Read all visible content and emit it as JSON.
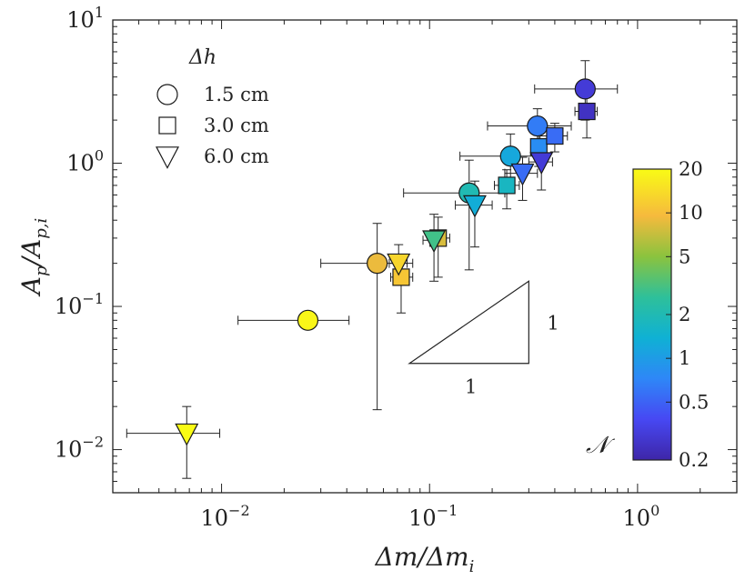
{
  "chart_data": {
    "type": "scatter",
    "xscale": "log",
    "yscale": "log",
    "xlim": [
      0.003,
      3
    ],
    "ylim": [
      0.005,
      10
    ],
    "x_ticks": [
      {
        "value": 0.01,
        "base": "10",
        "exp": "−2"
      },
      {
        "value": 0.1,
        "base": "10",
        "exp": "−1"
      },
      {
        "value": 1,
        "base": "10",
        "exp": "0"
      }
    ],
    "y_ticks": [
      {
        "value": 0.01,
        "base": "10",
        "exp": "−2"
      },
      {
        "value": 0.1,
        "base": "10",
        "exp": "−1"
      },
      {
        "value": 1,
        "base": "10",
        "exp": "0"
      },
      {
        "value": 10,
        "base": "10",
        "exp": "1"
      }
    ],
    "xlabel": "Δm/Δm",
    "xlabel_sub": "i",
    "ylabel": "A",
    "ylabel_sub": "p",
    "ylabel_denom": "/A",
    "ylabel_denom_sub": "p,i",
    "legend": {
      "title": "Δh",
      "entries": [
        {
          "marker": "circle",
          "label": "1.5 cm"
        },
        {
          "marker": "square",
          "label": "3.0 cm"
        },
        {
          "marker": "triangle-down",
          "label": "6.0 cm"
        }
      ]
    },
    "colorbar": {
      "title": "𝒩",
      "scale": "log",
      "range": [
        0.2,
        20
      ],
      "ticks": [
        {
          "value": 20,
          "label": "20"
        },
        {
          "value": 10,
          "label": "10"
        },
        {
          "value": 5,
          "label": "5"
        },
        {
          "value": 2,
          "label": "2"
        },
        {
          "value": 1,
          "label": "1"
        },
        {
          "value": 0.5,
          "label": "0.5"
        },
        {
          "value": 0.2,
          "label": "0.2"
        }
      ]
    },
    "slope_triangle": {
      "rise_label": "1",
      "run_label": "1",
      "x": [
        0.08,
        0.3
      ],
      "y": [
        0.04,
        0.15
      ]
    },
    "series": [
      {
        "name": "1.5 cm",
        "marker": "circle",
        "points": [
          {
            "x": 0.026,
            "y": 0.08,
            "xerr": [
              0.012,
              0.041
            ],
            "yerr": [
              0.08,
              0.08
            ],
            "n": 19
          },
          {
            "x": 0.056,
            "y": 0.2,
            "xerr": [
              0.03,
              0.083
            ],
            "yerr": [
              0.019,
              0.38
            ],
            "n": 9
          },
          {
            "x": 0.155,
            "y": 0.62,
            "xerr": [
              0.075,
              0.23
            ],
            "yerr": [
              0.18,
              1.05
            ],
            "n": 2
          },
          {
            "x": 0.245,
            "y": 1.12,
            "xerr": [
              0.14,
              0.33
            ],
            "yerr": [
              0.68,
              1.6
            ],
            "n": 1.2
          },
          {
            "x": 0.33,
            "y": 1.82,
            "xerr": [
              0.19,
              0.48
            ],
            "yerr": [
              1.15,
              2.4
            ],
            "n": 0.65
          },
          {
            "x": 0.56,
            "y": 3.3,
            "xerr": [
              0.32,
              0.8
            ],
            "yerr": [
              2.0,
              5.2
            ],
            "n": 0.3
          }
        ]
      },
      {
        "name": "3.0 cm",
        "marker": "square",
        "points": [
          {
            "x": 0.073,
            "y": 0.16,
            "xerr": [
              0.065,
              0.083
            ],
            "yerr": [
              0.09,
              0.22
            ],
            "n": 11
          },
          {
            "x": 0.11,
            "y": 0.3,
            "xerr": [
              0.1,
              0.125
            ],
            "yerr": [
              0.16,
              0.42
            ],
            "n": 8
          },
          {
            "x": 0.235,
            "y": 0.7,
            "xerr": [
              0.205,
              0.27
            ],
            "yerr": [
              0.48,
              0.9
            ],
            "n": 1.7
          },
          {
            "x": 0.335,
            "y": 1.3,
            "xerr": [
              0.31,
              0.36
            ],
            "yerr": [
              0.95,
              1.65
            ],
            "n": 0.8
          },
          {
            "x": 0.4,
            "y": 1.55,
            "xerr": [
              0.34,
              0.46
            ],
            "yerr": [
              1.2,
              1.9
            ],
            "n": 0.55
          },
          {
            "x": 0.57,
            "y": 2.3,
            "xerr": [
              0.5,
              0.64
            ],
            "yerr": [
              1.5,
              3.1
            ],
            "n": 0.25
          }
        ]
      },
      {
        "name": "6.0 cm",
        "marker": "triangle-down",
        "points": [
          {
            "x": 0.0068,
            "y": 0.013,
            "xerr": [
              0.0035,
              0.0098
            ],
            "yerr": [
              0.0063,
              0.02
            ],
            "n": 20
          },
          {
            "x": 0.071,
            "y": 0.2,
            "xerr": [
              0.064,
              0.078
            ],
            "yerr": [
              0.15,
              0.27
            ],
            "n": 13
          },
          {
            "x": 0.105,
            "y": 0.29,
            "xerr": [
              0.093,
              0.118
            ],
            "yerr": [
              0.15,
              0.44
            ],
            "n": 3
          },
          {
            "x": 0.165,
            "y": 0.51,
            "xerr": [
              0.133,
              0.2
            ],
            "yerr": [
              0.26,
              0.75
            ],
            "n": 1.3
          },
          {
            "x": 0.28,
            "y": 0.85,
            "xerr": [
              0.23,
              0.33
            ],
            "yerr": [
              0.55,
              1.1
            ],
            "n": 0.55
          },
          {
            "x": 0.345,
            "y": 1.02,
            "xerr": [
              0.3,
              0.39
            ],
            "yerr": [
              0.65,
              1.4
            ],
            "n": 0.3
          }
        ]
      }
    ]
  }
}
